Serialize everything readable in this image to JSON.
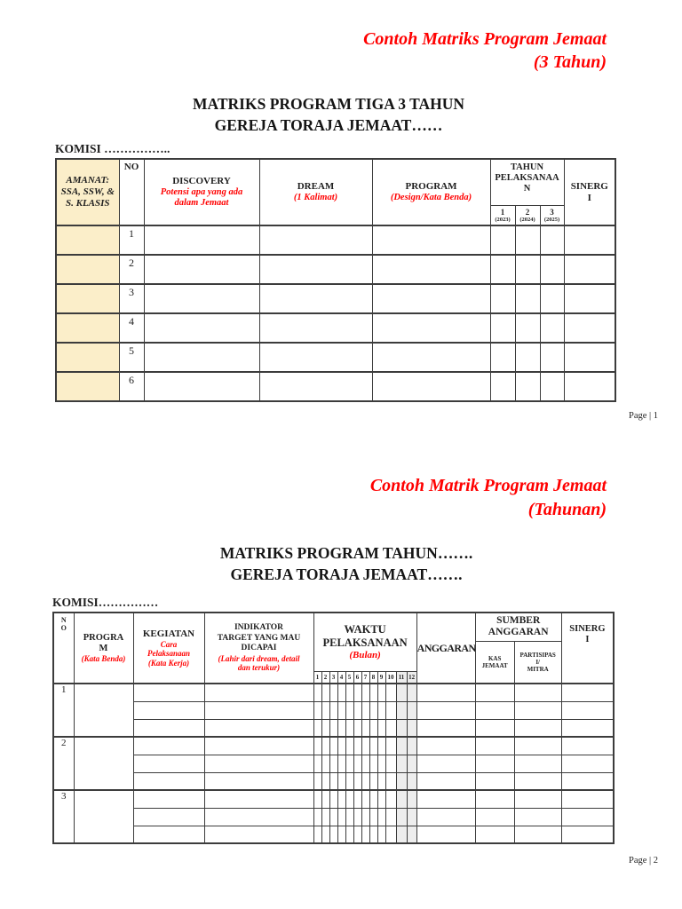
{
  "accent_red": "#ff0000",
  "cream_color": "#fbeec9",
  "shade_color": "#ededed",
  "page1": {
    "red_title": "Contoh Matriks Program Jemaat",
    "red_subtitle": "(3 Tahun)",
    "heading_line1": "MATRIKS PROGRAM TIGA 3 TAHUN",
    "heading_line2": "GEREJA TORAJA JEMAAT……",
    "komisi": "KOMISI ……………..",
    "header": {
      "amanat": "AMANAT:\nSSA, SSW, &\nS. KLASIS",
      "no": "NO",
      "discovery": "DISCOVERY",
      "discovery_note": "Potensi apa yang ada\ndalam Jemaat",
      "dream": "DREAM",
      "dream_note": "(1 Kalimat)",
      "program": "PROGRAM",
      "program_note": "(Design/Kata Benda)",
      "tahun": "TAHUN\nPELAKSANAA\nN",
      "sinergi": "SINERG\nI"
    },
    "year_nums": [
      "1",
      "2",
      "3"
    ],
    "year_labels": [
      "(2023)",
      "(2024)",
      "(2025)"
    ],
    "rows": [
      "1",
      "2",
      "3",
      "4",
      "5",
      "6"
    ],
    "footer": "Page | 1"
  },
  "page2": {
    "red_title": "Contoh Matrik Program Jemaat",
    "red_subtitle": "(Tahunan)",
    "heading_line1": "MATRIKS PROGRAM TAHUN…….",
    "heading_line2": "GEREJA TORAJA JEMAAT…….",
    "komisi": "KOMISI……………",
    "header": {
      "no": "N\nO",
      "program": "PROGRA\nM",
      "program_note": "(Kata Benda)",
      "kegiatan": "KEGIATAN",
      "kegiatan_note": "Cara\nPelaksanaan\n(Kata Kerja)",
      "indikator": "INDIKATOR\nTARGET YANG MAU\nDICAPAI",
      "indikator_note": "(Lahir dari dream, detail\ndan terukur)",
      "waktu": "WAKTU\nPELAKSANAAN",
      "waktu_note": "(Bulan)",
      "anggaran": "ANGGARAN",
      "sumber": "SUMBER\nANGGARAN",
      "kas": "KAS\nJEMAAT",
      "partisipasi": "PARTISIPAS\nI/\nMITRA",
      "sinergi": "SINERG\nI"
    },
    "months": [
      "1",
      "2",
      "3",
      "4",
      "5",
      "6",
      "7",
      "8",
      "9",
      "10",
      "11",
      "12"
    ],
    "shaded_months": [
      "11",
      "12"
    ],
    "rows": [
      "1",
      "2",
      "3"
    ],
    "subrows_per_row": 3,
    "footer": "Page | 2"
  }
}
